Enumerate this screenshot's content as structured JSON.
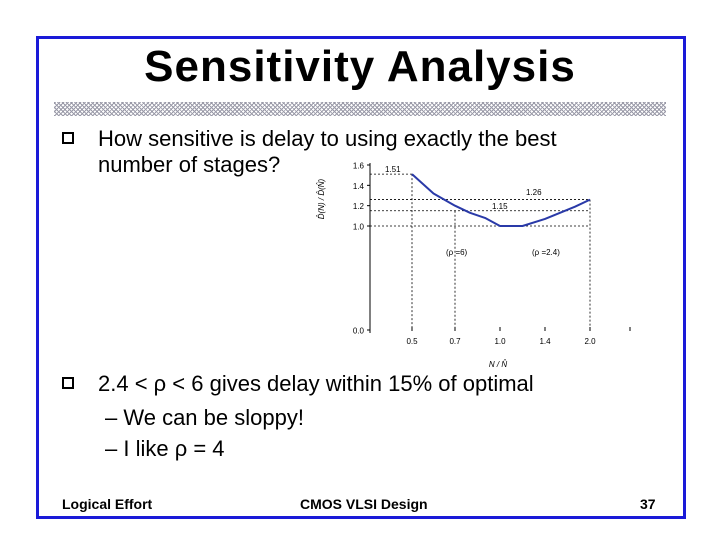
{
  "slide": {
    "title": "Sensitivity Analysis",
    "bullet1_line1": "How sensitive is delay to using exactly the best",
    "bullet1_line2": "number of stages?",
    "bullet2": "2.4 < ρ < 6 gives delay within 15% of optimal",
    "sub1": "– We can be sloppy!",
    "sub2": "– I like ρ = 4"
  },
  "footer": {
    "left": "Logical Effort",
    "center": "CMOS VLSI Design",
    "page": "37"
  },
  "colors": {
    "frame": "#1a1ad8",
    "curve": "#2a3aa8"
  },
  "chart_data": {
    "type": "line",
    "ylabel": "D̂(N) / D̂(N̂)",
    "xlabel": "N / N̂",
    "x_ticks": [
      "0.5",
      "0.7",
      "1.0",
      "1.4",
      "2.0"
    ],
    "y_ticks": [
      "0.0",
      "1.0",
      "1.2",
      "1.4",
      "1.6"
    ],
    "series": [
      {
        "x": [
          0.5,
          0.6,
          0.7,
          0.8,
          0.9,
          1.0,
          1.2,
          1.4,
          1.6,
          1.8,
          2.0
        ],
        "values": [
          1.51,
          1.32,
          1.2,
          1.13,
          1.08,
          1.0,
          1.0,
          1.07,
          1.13,
          1.19,
          1.26
        ]
      }
    ],
    "annotations": [
      "1.51",
      "1.26",
      "1.15",
      "(ρ =6)",
      "(ρ =2.4)"
    ],
    "guides": [
      "x=0.5",
      "x=0.7",
      "x=2.0",
      "y=1.0",
      "y=1.15",
      "y=1.26",
      "y=1.51"
    ]
  }
}
